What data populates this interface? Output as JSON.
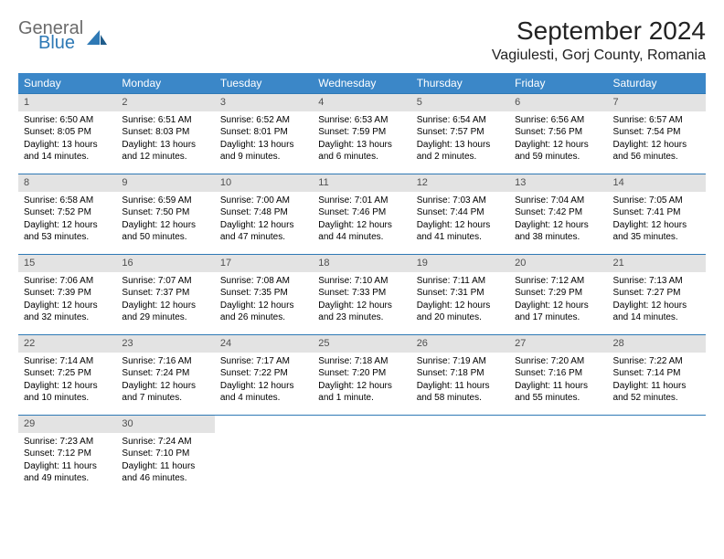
{
  "logo": {
    "general": "General",
    "blue": "Blue"
  },
  "title": "September 2024",
  "location": "Vagiulesti, Gorj County, Romania",
  "day_headers": [
    "Sunday",
    "Monday",
    "Tuesday",
    "Wednesday",
    "Thursday",
    "Friday",
    "Saturday"
  ],
  "colors": {
    "header_bg": "#3b87c8",
    "header_text": "#ffffff",
    "daynum_bg": "#e3e3e3",
    "week_border": "#2e79b5",
    "logo_gray": "#6b6b6b",
    "logo_blue": "#2e79b5"
  },
  "weeks": [
    [
      {
        "n": "1",
        "sr": "Sunrise: 6:50 AM",
        "ss": "Sunset: 8:05 PM",
        "d1": "Daylight: 13 hours",
        "d2": "and 14 minutes."
      },
      {
        "n": "2",
        "sr": "Sunrise: 6:51 AM",
        "ss": "Sunset: 8:03 PM",
        "d1": "Daylight: 13 hours",
        "d2": "and 12 minutes."
      },
      {
        "n": "3",
        "sr": "Sunrise: 6:52 AM",
        "ss": "Sunset: 8:01 PM",
        "d1": "Daylight: 13 hours",
        "d2": "and 9 minutes."
      },
      {
        "n": "4",
        "sr": "Sunrise: 6:53 AM",
        "ss": "Sunset: 7:59 PM",
        "d1": "Daylight: 13 hours",
        "d2": "and 6 minutes."
      },
      {
        "n": "5",
        "sr": "Sunrise: 6:54 AM",
        "ss": "Sunset: 7:57 PM",
        "d1": "Daylight: 13 hours",
        "d2": "and 2 minutes."
      },
      {
        "n": "6",
        "sr": "Sunrise: 6:56 AM",
        "ss": "Sunset: 7:56 PM",
        "d1": "Daylight: 12 hours",
        "d2": "and 59 minutes."
      },
      {
        "n": "7",
        "sr": "Sunrise: 6:57 AM",
        "ss": "Sunset: 7:54 PM",
        "d1": "Daylight: 12 hours",
        "d2": "and 56 minutes."
      }
    ],
    [
      {
        "n": "8",
        "sr": "Sunrise: 6:58 AM",
        "ss": "Sunset: 7:52 PM",
        "d1": "Daylight: 12 hours",
        "d2": "and 53 minutes."
      },
      {
        "n": "9",
        "sr": "Sunrise: 6:59 AM",
        "ss": "Sunset: 7:50 PM",
        "d1": "Daylight: 12 hours",
        "d2": "and 50 minutes."
      },
      {
        "n": "10",
        "sr": "Sunrise: 7:00 AM",
        "ss": "Sunset: 7:48 PM",
        "d1": "Daylight: 12 hours",
        "d2": "and 47 minutes."
      },
      {
        "n": "11",
        "sr": "Sunrise: 7:01 AM",
        "ss": "Sunset: 7:46 PM",
        "d1": "Daylight: 12 hours",
        "d2": "and 44 minutes."
      },
      {
        "n": "12",
        "sr": "Sunrise: 7:03 AM",
        "ss": "Sunset: 7:44 PM",
        "d1": "Daylight: 12 hours",
        "d2": "and 41 minutes."
      },
      {
        "n": "13",
        "sr": "Sunrise: 7:04 AM",
        "ss": "Sunset: 7:42 PM",
        "d1": "Daylight: 12 hours",
        "d2": "and 38 minutes."
      },
      {
        "n": "14",
        "sr": "Sunrise: 7:05 AM",
        "ss": "Sunset: 7:41 PM",
        "d1": "Daylight: 12 hours",
        "d2": "and 35 minutes."
      }
    ],
    [
      {
        "n": "15",
        "sr": "Sunrise: 7:06 AM",
        "ss": "Sunset: 7:39 PM",
        "d1": "Daylight: 12 hours",
        "d2": "and 32 minutes."
      },
      {
        "n": "16",
        "sr": "Sunrise: 7:07 AM",
        "ss": "Sunset: 7:37 PM",
        "d1": "Daylight: 12 hours",
        "d2": "and 29 minutes."
      },
      {
        "n": "17",
        "sr": "Sunrise: 7:08 AM",
        "ss": "Sunset: 7:35 PM",
        "d1": "Daylight: 12 hours",
        "d2": "and 26 minutes."
      },
      {
        "n": "18",
        "sr": "Sunrise: 7:10 AM",
        "ss": "Sunset: 7:33 PM",
        "d1": "Daylight: 12 hours",
        "d2": "and 23 minutes."
      },
      {
        "n": "19",
        "sr": "Sunrise: 7:11 AM",
        "ss": "Sunset: 7:31 PM",
        "d1": "Daylight: 12 hours",
        "d2": "and 20 minutes."
      },
      {
        "n": "20",
        "sr": "Sunrise: 7:12 AM",
        "ss": "Sunset: 7:29 PM",
        "d1": "Daylight: 12 hours",
        "d2": "and 17 minutes."
      },
      {
        "n": "21",
        "sr": "Sunrise: 7:13 AM",
        "ss": "Sunset: 7:27 PM",
        "d1": "Daylight: 12 hours",
        "d2": "and 14 minutes."
      }
    ],
    [
      {
        "n": "22",
        "sr": "Sunrise: 7:14 AM",
        "ss": "Sunset: 7:25 PM",
        "d1": "Daylight: 12 hours",
        "d2": "and 10 minutes."
      },
      {
        "n": "23",
        "sr": "Sunrise: 7:16 AM",
        "ss": "Sunset: 7:24 PM",
        "d1": "Daylight: 12 hours",
        "d2": "and 7 minutes."
      },
      {
        "n": "24",
        "sr": "Sunrise: 7:17 AM",
        "ss": "Sunset: 7:22 PM",
        "d1": "Daylight: 12 hours",
        "d2": "and 4 minutes."
      },
      {
        "n": "25",
        "sr": "Sunrise: 7:18 AM",
        "ss": "Sunset: 7:20 PM",
        "d1": "Daylight: 12 hours",
        "d2": "and 1 minute."
      },
      {
        "n": "26",
        "sr": "Sunrise: 7:19 AM",
        "ss": "Sunset: 7:18 PM",
        "d1": "Daylight: 11 hours",
        "d2": "and 58 minutes."
      },
      {
        "n": "27",
        "sr": "Sunrise: 7:20 AM",
        "ss": "Sunset: 7:16 PM",
        "d1": "Daylight: 11 hours",
        "d2": "and 55 minutes."
      },
      {
        "n": "28",
        "sr": "Sunrise: 7:22 AM",
        "ss": "Sunset: 7:14 PM",
        "d1": "Daylight: 11 hours",
        "d2": "and 52 minutes."
      }
    ],
    [
      {
        "n": "29",
        "sr": "Sunrise: 7:23 AM",
        "ss": "Sunset: 7:12 PM",
        "d1": "Daylight: 11 hours",
        "d2": "and 49 minutes."
      },
      {
        "n": "30",
        "sr": "Sunrise: 7:24 AM",
        "ss": "Sunset: 7:10 PM",
        "d1": "Daylight: 11 hours",
        "d2": "and 46 minutes."
      },
      {
        "empty": true
      },
      {
        "empty": true
      },
      {
        "empty": true
      },
      {
        "empty": true
      },
      {
        "empty": true
      }
    ]
  ]
}
